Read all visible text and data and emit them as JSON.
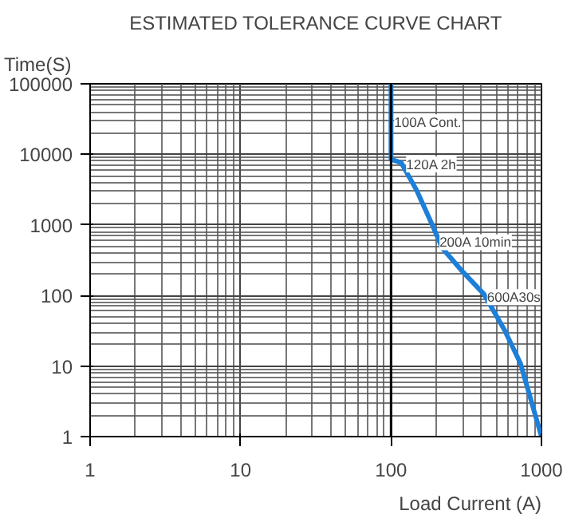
{
  "chart_data": {
    "type": "line",
    "title": "ESTIMATED TOLERANCE CURVE CHART",
    "xlabel": "Load Current (A)",
    "ylabel": "Time(S)",
    "log": "xy",
    "grid": true,
    "xlim": [
      1,
      1000
    ],
    "ylim": [
      1,
      100000
    ],
    "xticks": [
      1,
      10,
      100,
      1000
    ],
    "yticks": [
      1,
      10,
      100,
      1000,
      10000,
      100000
    ],
    "series": [
      {
        "color": "#1e7fd8",
        "x": [
          100,
          100,
          117,
          148,
          188,
          219,
          302,
          414,
          570,
          724,
          1000
        ],
        "values": [
          100000,
          8500,
          7600,
          3100,
          1000,
          470,
          213,
          105,
          32,
          11,
          1
        ]
      }
    ],
    "ref_lines": [
      {
        "axis": "x",
        "value": 100,
        "color": "#000000"
      }
    ],
    "annotations": [
      {
        "text": "100A Cont.",
        "x": 100,
        "y": 30000
      },
      {
        "text": "120A 2h",
        "x": 120,
        "y": 7600
      },
      {
        "text": "200A 10min",
        "x": 200,
        "y": 600
      },
      {
        "text": "600A30s",
        "x": 414,
        "y": 100
      }
    ]
  }
}
